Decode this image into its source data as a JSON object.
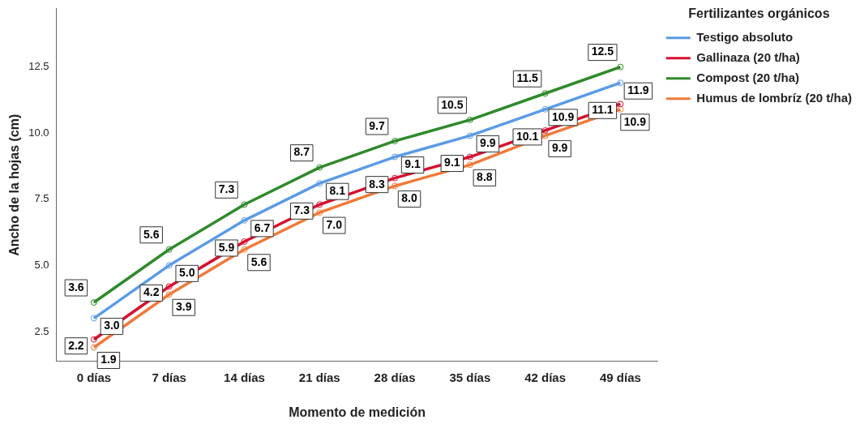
{
  "chart_data": {
    "type": "line",
    "xlabel": "Momento de medición",
    "ylabel": "Ancho de la hojas (cm)",
    "legend_title": "Fertilizantes orgánicos",
    "categories": [
      "0 días",
      "7 días",
      "14 días",
      "21 días",
      "28 días",
      "35 días",
      "42 días",
      "49 días"
    ],
    "series": [
      {
        "name": "Testigo absoluto",
        "color": "#5b9be6",
        "values": [
          3.0,
          5.0,
          6.7,
          8.1,
          9.1,
          9.9,
          10.9,
          11.9
        ],
        "value_labels": [
          "3.0",
          "5.0",
          "6.7",
          "8.1",
          "9.1",
          "9.9",
          "10.9",
          "11.9"
        ]
      },
      {
        "name": "Gallinaza (20 t/ha)",
        "color": "#d7102f",
        "values": [
          2.2,
          4.2,
          5.9,
          7.3,
          8.3,
          9.1,
          10.1,
          11.1
        ],
        "value_labels": [
          "2.2",
          "4.2",
          "5.9",
          "7.3",
          "8.3",
          "9.1",
          "10.1",
          "11.1"
        ]
      },
      {
        "name": "Compost (20 t/ha)",
        "color": "#2f8a2b",
        "values": [
          3.6,
          5.6,
          7.3,
          8.7,
          9.7,
          10.5,
          11.5,
          12.5
        ],
        "value_labels": [
          "3.6",
          "5.6",
          "7.3",
          "8.7",
          "9.7",
          "10.5",
          "11.5",
          "12.5"
        ]
      },
      {
        "name": "Humus de lombríz (20 t/ha)",
        "color": "#f07a3a",
        "values": [
          1.9,
          3.9,
          5.6,
          7.0,
          8.0,
          8.8,
          9.9,
          10.9
        ],
        "value_labels": [
          "1.9",
          "3.9",
          "5.6",
          "7.0",
          "8.0",
          "8.8",
          "9.9",
          "10.9"
        ]
      }
    ],
    "ylim": [
      1.37,
      14.7
    ],
    "yticks": [
      {
        "value": 2.5,
        "label": "2.5"
      },
      {
        "value": 5,
        "label": "5.0"
      },
      {
        "value": 7.5,
        "label": "7.5"
      },
      {
        "value": 10,
        "label": "10.0"
      },
      {
        "value": 12.5,
        "label": "12.5"
      }
    ],
    "grid": false,
    "legend": "top right",
    "marker": "circle",
    "line_style": "solid"
  }
}
